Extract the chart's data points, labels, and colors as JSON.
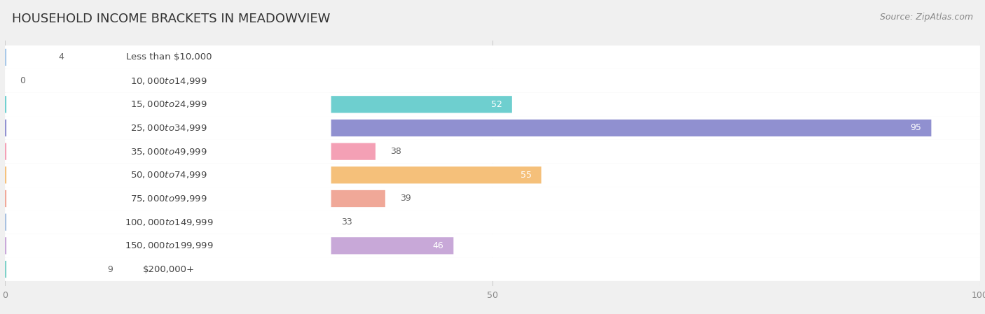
{
  "title": "HOUSEHOLD INCOME BRACKETS IN MEADOWVIEW",
  "source": "Source: ZipAtlas.com",
  "categories": [
    "Less than $10,000",
    "$10,000 to $14,999",
    "$15,000 to $24,999",
    "$25,000 to $34,999",
    "$35,000 to $49,999",
    "$50,000 to $74,999",
    "$75,000 to $99,999",
    "$100,000 to $149,999",
    "$150,000 to $199,999",
    "$200,000+"
  ],
  "values": [
    4,
    0,
    52,
    95,
    38,
    55,
    39,
    33,
    46,
    9
  ],
  "bar_colors": [
    "#a8c8e8",
    "#c9b3d9",
    "#6ecfcf",
    "#9090d0",
    "#f4a0b5",
    "#f5c07a",
    "#f0a898",
    "#a8c0e0",
    "#c8a8d8",
    "#7dd0c8"
  ],
  "xlim": [
    0,
    100
  ],
  "xticks": [
    0,
    50,
    100
  ],
  "background_color": "#f0f0f0",
  "bar_background_color": "#ffffff",
  "label_color": "#444444",
  "value_color_inside": "#ffffff",
  "value_color_outside": "#666666",
  "title_fontsize": 13,
  "label_fontsize": 9.5,
  "value_fontsize": 9,
  "source_fontsize": 9
}
